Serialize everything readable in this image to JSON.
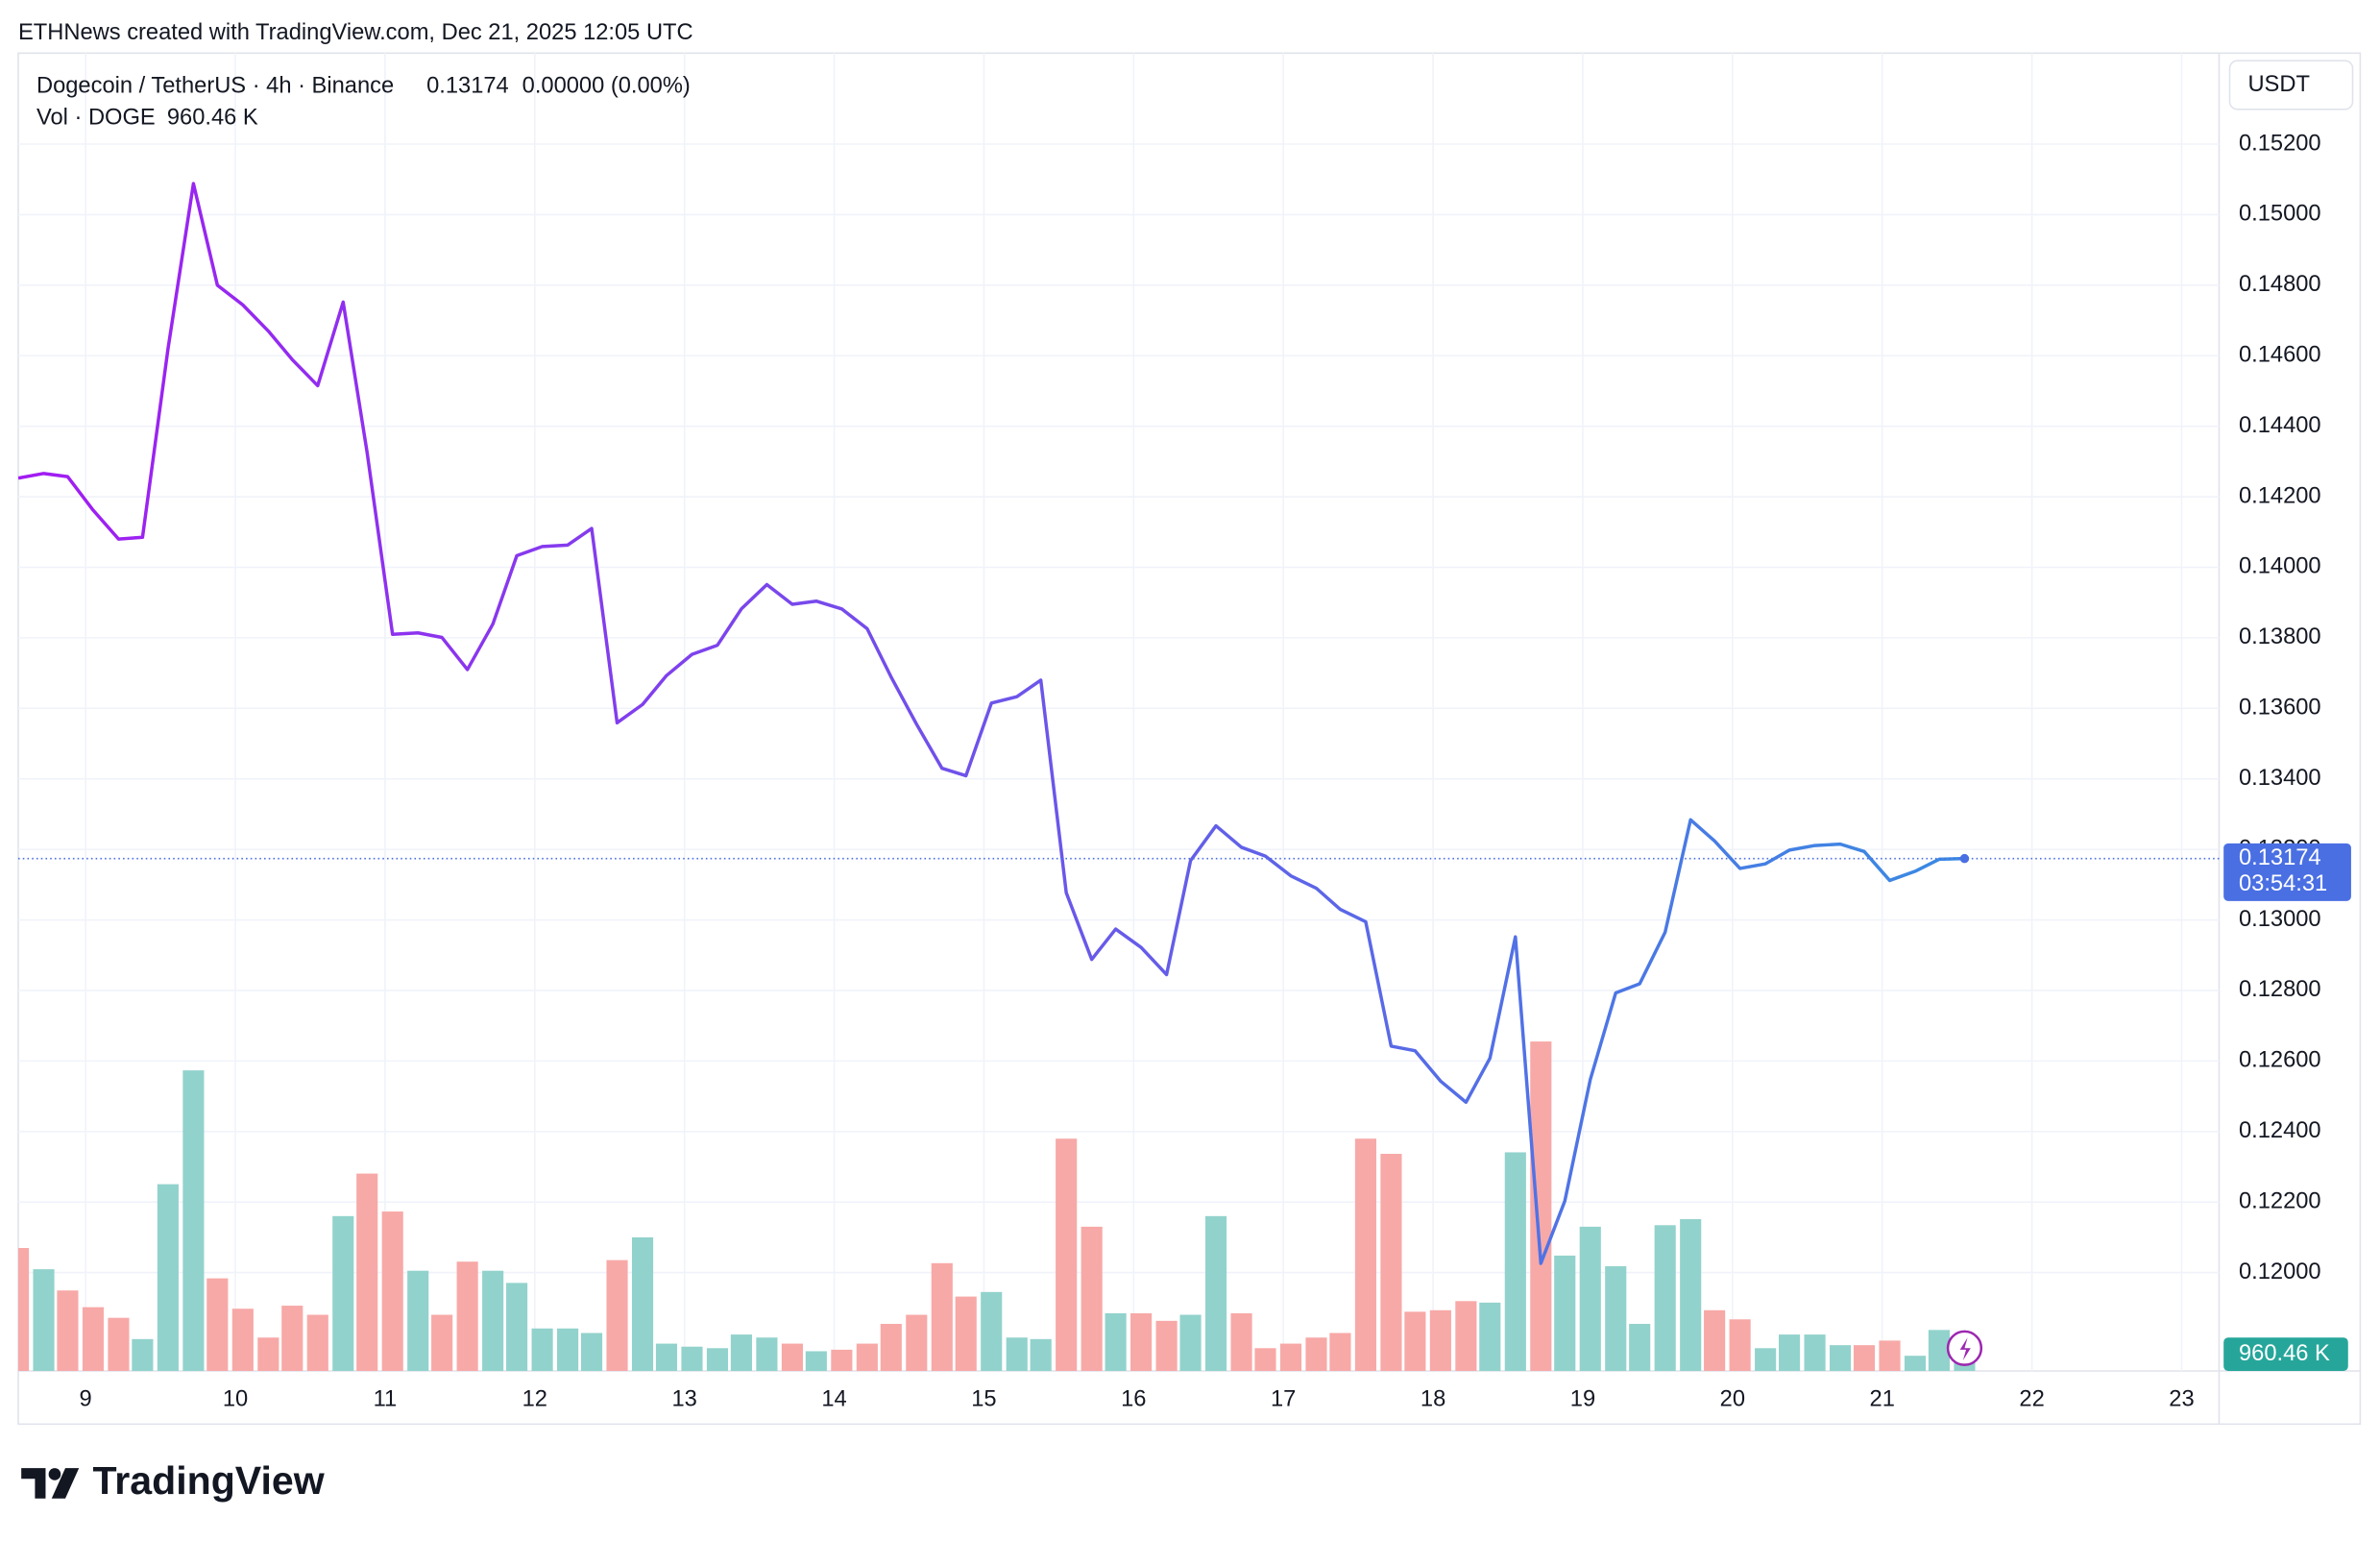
{
  "header": {
    "credit": "ETHNews created with TradingView.com, Dec 21, 2025 12:05 UTC"
  },
  "footer": {
    "brand": "TradingView"
  },
  "chart_data": {
    "type": "line",
    "title": "Dogecoin / TetherUS · 4h · Binance",
    "price": "0.13174",
    "change": "0.00000 (0.00%)",
    "volume_title": "Vol · DOGE",
    "volume_label": "960.46 K",
    "currency": "USDT",
    "countdown": "03:54:31",
    "line_colors": [
      "#a21cf2",
      "#3a8ae2"
    ],
    "price_color": "#4a6fe3",
    "volume_color": "#26a69a",
    "x": [
      8.55,
      8.72,
      8.88,
      9.05,
      9.22,
      9.38,
      9.55,
      9.72,
      9.88,
      10.05,
      10.22,
      10.38,
      10.55,
      10.72,
      10.88,
      11.05,
      11.22,
      11.38,
      11.55,
      11.72,
      11.88,
      12.05,
      12.22,
      12.38,
      12.55,
      12.72,
      12.88,
      13.05,
      13.22,
      13.38,
      13.55,
      13.72,
      13.88,
      14.05,
      14.22,
      14.38,
      14.55,
      14.72,
      14.88,
      15.05,
      15.22,
      15.38,
      15.55,
      15.72,
      15.88,
      16.05,
      16.22,
      16.38,
      16.55,
      16.72,
      16.88,
      17.05,
      17.22,
      17.38,
      17.55,
      17.72,
      17.88,
      18.05,
      18.22,
      18.38,
      18.55,
      18.72,
      18.88,
      19.05,
      19.22,
      19.38,
      19.55,
      19.72,
      19.88,
      20.05,
      20.22,
      20.38,
      20.55,
      20.72,
      20.88,
      21.05,
      21.22,
      21.38,
      21.55
    ],
    "values": [
      0.14253,
      0.14266,
      0.14257,
      0.14162,
      0.1408,
      0.14085,
      0.14619,
      0.15088,
      0.148,
      0.14744,
      0.1467,
      0.14589,
      0.14515,
      0.14752,
      0.14326,
      0.1381,
      0.13814,
      0.13801,
      0.1371,
      0.13839,
      0.14033,
      0.14059,
      0.14063,
      0.1411,
      0.13559,
      0.13611,
      0.13693,
      0.13753,
      0.13779,
      0.13882,
      0.13951,
      0.13895,
      0.13904,
      0.13882,
      0.13826,
      0.13689,
      0.13555,
      0.1343,
      0.13409,
      0.13615,
      0.13633,
      0.1368,
      0.13077,
      0.12888,
      0.12974,
      0.12922,
      0.12845,
      0.13168,
      0.13267,
      0.13206,
      0.13181,
      0.13125,
      0.1309,
      0.1303,
      0.12995,
      0.12642,
      0.12629,
      0.12543,
      0.12483,
      0.12608,
      0.12952,
      0.12026,
      0.12203,
      0.12547,
      0.12793,
      0.12819,
      0.12965,
      0.13284,
      0.13224,
      0.13146,
      0.13159,
      0.13198,
      0.13211,
      0.13215,
      0.13194,
      0.13112,
      0.13138,
      0.13172,
      0.13174
    ],
    "volume": [
      7071,
      5849,
      4627,
      3667,
      3056,
      1833,
      10738,
      17285,
      5325,
      3579,
      1921,
      3754,
      3230,
      8905,
      11349,
      9167,
      5762,
      3230,
      6286,
      5762,
      5063,
      2444,
      2444,
      2183,
      6373,
      7682,
      1571,
      1397,
      1310,
      2095,
      1921,
      1571,
      1135,
      1222,
      1571,
      2706,
      3230,
      6198,
      4278,
      4540,
      1921,
      1833,
      13357,
      8294,
      3317,
      3317,
      2881,
      3230,
      8905,
      3317,
      1310,
      1571,
      1921,
      2183,
      13357,
      12484,
      3405,
      3492,
      4016,
      3929,
      12571,
      18944,
      6635,
      8294,
      6024,
      2706,
      8381,
      8730,
      3492,
      2968,
      1310,
      2095,
      2095,
      1484,
      1484,
      1746,
      873,
      2357,
      960.46
    ],
    "volume_colors": [
      "#f7a9a7",
      "#92d2cc",
      "#f7a9a7",
      "#f7a9a7",
      "#f7a9a7",
      "#92d2cc",
      "#92d2cc",
      "#92d2cc",
      "#f7a9a7",
      "#f7a9a7",
      "#f7a9a7",
      "#f7a9a7",
      "#f7a9a7",
      "#92d2cc",
      "#f7a9a7",
      "#f7a9a7",
      "#92d2cc",
      "#f7a9a7",
      "#f7a9a7",
      "#92d2cc",
      "#92d2cc",
      "#92d2cc",
      "#92d2cc",
      "#92d2cc",
      "#f7a9a7",
      "#92d2cc",
      "#92d2cc",
      "#92d2cc",
      "#92d2cc",
      "#92d2cc",
      "#92d2cc",
      "#f7a9a7",
      "#92d2cc",
      "#f7a9a7",
      "#f7a9a7",
      "#f7a9a7",
      "#f7a9a7",
      "#f7a9a7",
      "#f7a9a7",
      "#92d2cc",
      "#92d2cc",
      "#92d2cc",
      "#f7a9a7",
      "#f7a9a7",
      "#92d2cc",
      "#f7a9a7",
      "#f7a9a7",
      "#92d2cc",
      "#92d2cc",
      "#f7a9a7",
      "#f7a9a7",
      "#f7a9a7",
      "#f7a9a7",
      "#f7a9a7",
      "#f7a9a7",
      "#f7a9a7",
      "#f7a9a7",
      "#f7a9a7",
      "#f7a9a7",
      "#92d2cc",
      "#92d2cc",
      "#f7a9a7",
      "#92d2cc",
      "#92d2cc",
      "#92d2cc",
      "#92d2cc",
      "#92d2cc",
      "#92d2cc",
      "#f7a9a7",
      "#f7a9a7",
      "#92d2cc",
      "#92d2cc",
      "#92d2cc",
      "#92d2cc",
      "#f7a9a7",
      "#f7a9a7",
      "#92d2cc",
      "#92d2cc",
      "#92d2cc"
    ],
    "xlim": [
      8.55,
      23.25
    ],
    "xticks": [
      9,
      10,
      11,
      12,
      13,
      14,
      15,
      16,
      17,
      18,
      19,
      20,
      21,
      22,
      23
    ],
    "ylim": [
      0.11721,
      0.15458
    ],
    "yticks": [
      {
        "value": 0.152,
        "label": "0.15200"
      },
      {
        "value": 0.15,
        "label": "0.15000"
      },
      {
        "value": 0.148,
        "label": "0.14800"
      },
      {
        "value": 0.146,
        "label": "0.14600"
      },
      {
        "value": 0.144,
        "label": "0.14400"
      },
      {
        "value": 0.142,
        "label": "0.14200"
      },
      {
        "value": 0.14,
        "label": "0.14000"
      },
      {
        "value": 0.138,
        "label": "0.13800"
      },
      {
        "value": 0.136,
        "label": "0.13600"
      },
      {
        "value": 0.134,
        "label": "0.13400"
      },
      {
        "value": 0.132,
        "label": "0.13200"
      },
      {
        "value": 0.13,
        "label": "0.13000"
      },
      {
        "value": 0.128,
        "label": "0.12800"
      },
      {
        "value": 0.126,
        "label": "0.12600"
      },
      {
        "value": 0.124,
        "label": "0.12400"
      },
      {
        "value": 0.122,
        "label": "0.12200"
      },
      {
        "value": 0.12,
        "label": "0.12000"
      }
    ],
    "grid": true
  }
}
